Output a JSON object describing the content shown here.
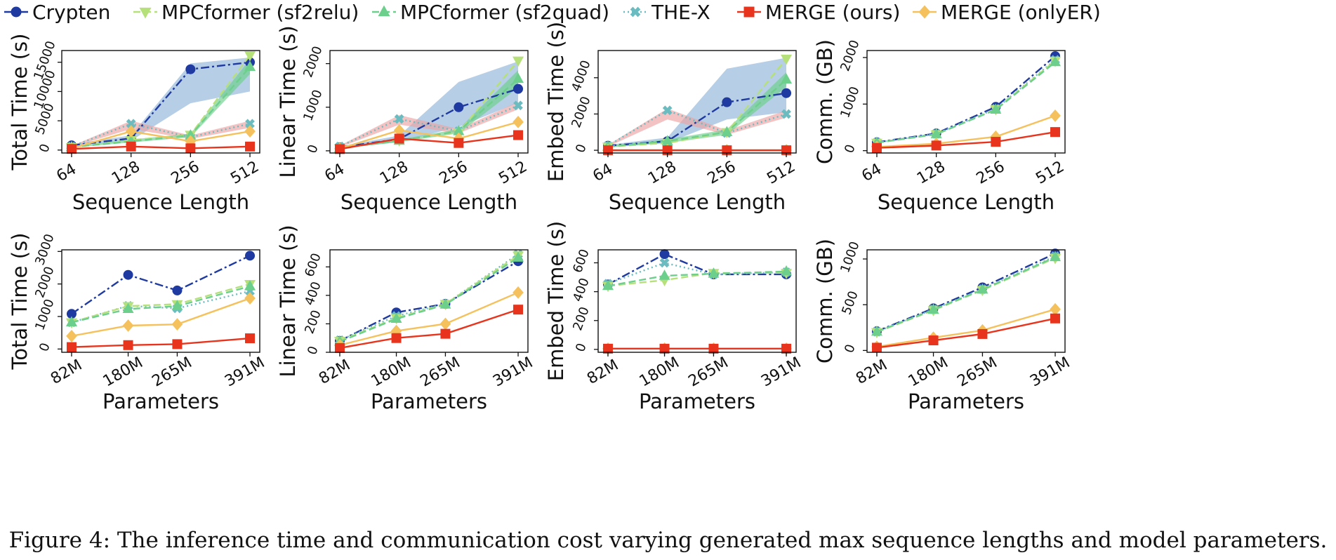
{
  "caption": "Figure 4: The inference time and communication cost varying generated max sequence lengths and model parameters.",
  "legend": [
    {
      "name": "Crypten",
      "color": "#1f3aa0",
      "marker": "circle",
      "dash": "dashdot"
    },
    {
      "name": "MPCformer (sf2relu)",
      "color": "#b6e07a",
      "marker": "tri_down",
      "dash": "dashed"
    },
    {
      "name": "MPCformer (sf2quad)",
      "color": "#6dcf8c",
      "marker": "tri_up",
      "dash": "dashed"
    },
    {
      "name": "THE-X",
      "color": "#6bbcc0",
      "marker": "x",
      "dash": "dotted"
    },
    {
      "name": "MERGE (ours)",
      "color": "#e8341c",
      "marker": "square",
      "dash": "solid"
    },
    {
      "name": "MERGE (onlyER)",
      "color": "#f5c15c",
      "marker": "diamond",
      "dash": "solid"
    }
  ],
  "chart_data": [
    {
      "type": "line",
      "xlabel": "Sequence Length",
      "ylabel": "Total Time (s)",
      "categories": [
        "64",
        "128",
        "256",
        "512"
      ],
      "ylim": [
        -500,
        17000
      ],
      "yticks": [
        0,
        5000,
        10000,
        15000
      ],
      "series": [
        {
          "name": "Crypten",
          "values": [
            800,
            2000,
            13800,
            15000
          ]
        },
        {
          "name": "MPCformer (sf2relu)",
          "values": [
            500,
            1700,
            2600,
            16200
          ]
        },
        {
          "name": "MPCformer (sf2quad)",
          "values": [
            500,
            1500,
            2500,
            14200
          ]
        },
        {
          "name": "THE-X",
          "values": [
            600,
            4500,
            2200,
            4500
          ]
        },
        {
          "name": "MERGE (ours)",
          "values": [
            200,
            600,
            300,
            600
          ]
        },
        {
          "name": "MERGE (onlyER)",
          "values": [
            300,
            3200,
            1500,
            3200
          ]
        }
      ],
      "bands": [
        {
          "series": "Crypten",
          "lower": [
            700,
            1600,
            8000,
            10000
          ],
          "upper": [
            1000,
            2500,
            14800,
            15800
          ]
        },
        {
          "series": "THE-X",
          "lower": [
            500,
            3600,
            1900,
            3800
          ],
          "upper": [
            700,
            5000,
            2500,
            5000
          ]
        },
        {
          "series": "MPCformer (sf2quad)",
          "lower": [
            400,
            1300,
            2200,
            13000
          ],
          "upper": [
            600,
            1800,
            2800,
            15500
          ]
        }
      ]
    },
    {
      "type": "line",
      "xlabel": "Sequence Length",
      "ylabel": "Linear Time (s)",
      "categories": [
        "64",
        "128",
        "256",
        "512"
      ],
      "ylim": [
        -50,
        2300
      ],
      "yticks": [
        0,
        1000,
        2000
      ],
      "series": [
        {
          "name": "Crypten",
          "values": [
            80,
            270,
            1000,
            1420
          ]
        },
        {
          "name": "MPCformer (sf2relu)",
          "values": [
            60,
            240,
            420,
            2070
          ]
        },
        {
          "name": "MPCformer (sf2quad)",
          "values": [
            60,
            230,
            450,
            1650
          ]
        },
        {
          "name": "THE-X",
          "values": [
            100,
            730,
            450,
            1040
          ]
        },
        {
          "name": "MERGE (ours)",
          "values": [
            40,
            280,
            180,
            360
          ]
        },
        {
          "name": "MERGE (onlyER)",
          "values": [
            50,
            470,
            280,
            660
          ]
        }
      ],
      "bands": [
        {
          "series": "Crypten",
          "lower": [
            60,
            200,
            550,
            1100
          ],
          "upper": [
            100,
            350,
            1580,
            2050
          ]
        },
        {
          "series": "THE-X",
          "lower": [
            80,
            600,
            400,
            950
          ],
          "upper": [
            120,
            820,
            500,
            1120
          ]
        },
        {
          "series": "MPCformer (sf2quad)",
          "lower": [
            50,
            200,
            400,
            1450
          ],
          "upper": [
            70,
            260,
            500,
            1850
          ]
        }
      ]
    },
    {
      "type": "line",
      "xlabel": "Sequence Length",
      "ylabel": "Embed Time (s)",
      "categories": [
        "64",
        "128",
        "256",
        "512"
      ],
      "ylim": [
        -150,
        5500
      ],
      "yticks": [
        0,
        2000,
        4000
      ],
      "series": [
        {
          "name": "Crypten",
          "values": [
            250,
            500,
            2650,
            3150
          ]
        },
        {
          "name": "MPCformer (sf2relu)",
          "values": [
            200,
            400,
            1000,
            5050
          ]
        },
        {
          "name": "MPCformer (sf2quad)",
          "values": [
            200,
            500,
            1000,
            3900
          ]
        },
        {
          "name": "THE-X",
          "values": [
            250,
            2200,
            950,
            2000
          ]
        },
        {
          "name": "MERGE (ours)",
          "values": [
            0,
            0,
            0,
            0
          ]
        },
        {
          "name": "MERGE (onlyER)",
          "values": [
            0,
            0,
            0,
            0
          ]
        }
      ],
      "bands": [
        {
          "series": "Crypten",
          "lower": [
            200,
            400,
            1700,
            2100
          ],
          "upper": [
            300,
            700,
            4500,
            5100
          ]
        },
        {
          "series": "THE-X",
          "lower": [
            200,
            1700,
            850,
            1800
          ],
          "upper": [
            300,
            2300,
            1100,
            2200
          ]
        },
        {
          "series": "MPCformer (sf2quad)",
          "lower": [
            150,
            400,
            850,
            3500
          ],
          "upper": [
            250,
            600,
            1150,
            4300
          ]
        }
      ]
    },
    {
      "type": "line",
      "xlabel": "Sequence Length",
      "ylabel": "Comm. (GB)",
      "categories": [
        "64",
        "128",
        "256",
        "512"
      ],
      "ylim": [
        -50,
        2150
      ],
      "yticks": [
        0,
        1000,
        2000
      ],
      "series": [
        {
          "name": "Crypten",
          "values": [
            180,
            370,
            940,
            2030
          ]
        },
        {
          "name": "MPCformer (sf2relu)",
          "values": [
            170,
            350,
            890,
            1930
          ]
        },
        {
          "name": "MPCformer (sf2quad)",
          "values": [
            170,
            355,
            880,
            1900
          ]
        },
        {
          "name": "THE-X",
          "values": [
            175,
            360,
            900,
            1950
          ]
        },
        {
          "name": "MERGE (ours)",
          "values": [
            60,
            110,
            190,
            400
          ]
        },
        {
          "name": "MERGE (onlyER)",
          "values": [
            80,
            150,
            300,
            750
          ]
        }
      ]
    },
    {
      "type": "line",
      "xlabel": "Parameters",
      "ylabel": "Total Time (s)",
      "categories": [
        "82M",
        "180M",
        "265M",
        "391M"
      ],
      "x": [
        82,
        180,
        265,
        391
      ],
      "ylim": [
        -100,
        3050
      ],
      "yticks": [
        0,
        1000,
        2000,
        3000
      ],
      "series": [
        {
          "name": "Crypten",
          "values": [
            1080,
            2280,
            1800,
            2870
          ]
        },
        {
          "name": "MPCformer (sf2relu)",
          "values": [
            820,
            1320,
            1380,
            2000
          ]
        },
        {
          "name": "MPCformer (sf2quad)",
          "values": [
            820,
            1230,
            1320,
            1930
          ]
        },
        {
          "name": "THE-X",
          "values": [
            820,
            1330,
            1250,
            1780
          ]
        },
        {
          "name": "MERGE (ours)",
          "values": [
            60,
            120,
            150,
            330
          ]
        },
        {
          "name": "MERGE (onlyER)",
          "values": [
            400,
            720,
            760,
            1560
          ]
        }
      ]
    },
    {
      "type": "line",
      "xlabel": "Parameters",
      "ylabel": "Linear Time (s)",
      "categories": [
        "82M",
        "180M",
        "265M",
        "391M"
      ],
      "x": [
        82,
        180,
        265,
        391
      ],
      "ylim": [
        0,
        720
      ],
      "yticks": [
        0,
        200,
        400,
        600
      ],
      "series": [
        {
          "name": "Crypten",
          "values": [
            80,
            280,
            340,
            640
          ]
        },
        {
          "name": "MPCformer (sf2relu)",
          "values": [
            80,
            240,
            340,
            680
          ]
        },
        {
          "name": "MPCformer (sf2quad)",
          "values": [
            75,
            235,
            335,
            665
          ]
        },
        {
          "name": "THE-X",
          "values": [
            85,
            255,
            340,
            690
          ]
        },
        {
          "name": "MERGE (ours)",
          "values": [
            30,
            100,
            130,
            300
          ]
        },
        {
          "name": "MERGE (onlyER)",
          "values": [
            50,
            150,
            200,
            420
          ]
        }
      ]
    },
    {
      "type": "line",
      "xlabel": "Parameters",
      "ylabel": "Embed Time (s)",
      "categories": [
        "82M",
        "180M",
        "265M",
        "391M"
      ],
      "x": [
        82,
        180,
        265,
        391
      ],
      "ylim": [
        -20,
        690
      ],
      "yticks": [
        0,
        200,
        400,
        600
      ],
      "series": [
        {
          "name": "Crypten",
          "values": [
            450,
            660,
            520,
            520
          ]
        },
        {
          "name": "MPCformer (sf2relu)",
          "values": [
            440,
            480,
            530,
            530
          ]
        },
        {
          "name": "MPCformer (sf2quad)",
          "values": [
            440,
            510,
            525,
            540
          ]
        },
        {
          "name": "THE-X",
          "values": [
            455,
            600,
            520,
            535
          ]
        },
        {
          "name": "MERGE (ours)",
          "values": [
            5,
            5,
            5,
            5
          ]
        },
        {
          "name": "MERGE (onlyER)",
          "values": [
            5,
            5,
            5,
            5
          ]
        }
      ]
    },
    {
      "type": "line",
      "xlabel": "Parameters",
      "ylabel": "Comm. (GB)",
      "categories": [
        "82M",
        "180M",
        "265M",
        "391M"
      ],
      "x": [
        82,
        180,
        265,
        391
      ],
      "ylim": [
        -20,
        1100
      ],
      "yticks": [
        0,
        500,
        1000
      ],
      "series": [
        {
          "name": "Crypten",
          "values": [
            210,
            460,
            690,
            1060
          ]
        },
        {
          "name": "MPCformer (sf2relu)",
          "values": [
            200,
            440,
            660,
            1010
          ]
        },
        {
          "name": "MPCformer (sf2quad)",
          "values": [
            205,
            445,
            665,
            1020
          ]
        },
        {
          "name": "THE-X",
          "values": [
            205,
            450,
            670,
            1030
          ]
        },
        {
          "name": "MERGE (ours)",
          "values": [
            30,
            110,
            180,
            350
          ]
        },
        {
          "name": "MERGE (onlyER)",
          "values": [
            40,
            140,
            220,
            450
          ]
        }
      ]
    }
  ]
}
